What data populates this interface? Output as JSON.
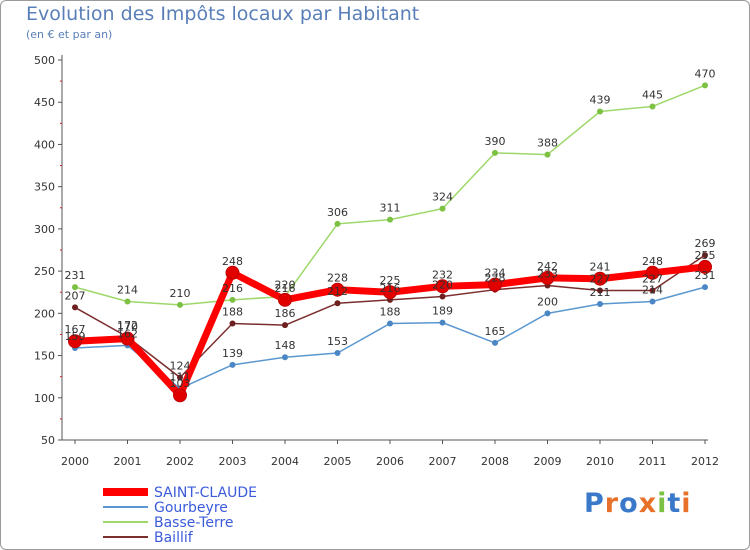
{
  "header": {
    "title": "Evolution des Impôts locaux par Habitant",
    "subtitle": "(en € et par an)"
  },
  "logo": {
    "text": "Proxiti",
    "colors": [
      "#3a78c9",
      "#e8712a",
      "#3a78c9",
      "#e8712a",
      "#7cc142",
      "#3a78c9",
      "#e8712a"
    ]
  },
  "chart_data": {
    "type": "line",
    "x": [
      "2000",
      "2001",
      "2002",
      "2003",
      "2004",
      "2005",
      "2006",
      "2007",
      "2008",
      "2009",
      "2010",
      "2011",
      "2012"
    ],
    "ylim": [
      50,
      500
    ],
    "yticks": [
      50,
      100,
      150,
      200,
      250,
      300,
      350,
      400,
      450,
      500
    ],
    "grid": false,
    "legend_position": "bottom-left",
    "series": [
      {
        "name": "SAINT-CLAUDE",
        "color": "#ff0000",
        "marker_color": "#e00000",
        "values": [
          167,
          170,
          103,
          248,
          216,
          228,
          225,
          232,
          234,
          242,
          241,
          248,
          255
        ]
      },
      {
        "name": "Gourbeyre",
        "color": "#5b97cf",
        "marker_color": "#4a87c4",
        "values": [
          159,
          162,
          111,
          139,
          148,
          153,
          188,
          189,
          165,
          200,
          211,
          214,
          231
        ]
      },
      {
        "name": "Basse-Terre",
        "color": "#9ed86a",
        "marker_color": "#7cc142",
        "values": [
          231,
          214,
          210,
          216,
          220,
          306,
          311,
          324,
          390,
          388,
          439,
          445,
          470
        ]
      },
      {
        "name": "Baillif",
        "color": "#7b2e2e",
        "marker_color": "#6e1f1f",
        "values": [
          207,
          172,
          124,
          188,
          186,
          212,
          216,
          220,
          228,
          233,
          227,
          227,
          269
        ]
      }
    ]
  }
}
